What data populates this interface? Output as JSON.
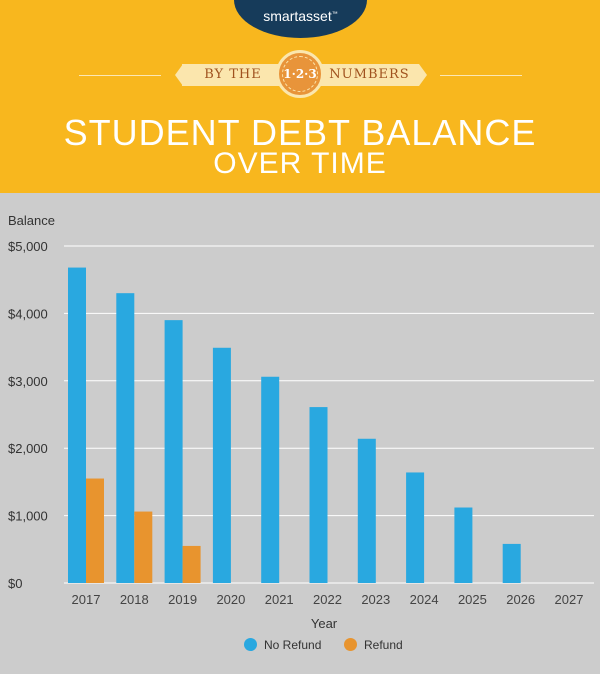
{
  "brand": {
    "logo_text": "smartasset",
    "logo_tm": "™"
  },
  "header": {
    "banner_left": "BY THE",
    "banner_badge": "1·2·3",
    "banner_right": "NUMBERS",
    "title_line1": "STUDENT DEBT BALANCE",
    "title_line2": "OVER TIME",
    "bg_color": "#f8b71e"
  },
  "chart_data": {
    "type": "bar",
    "title": "STUDENT DEBT BALANCE OVER TIME",
    "xlabel": "Year",
    "ylabel": "Balance",
    "categories": [
      "2017",
      "2018",
      "2019",
      "2020",
      "2021",
      "2022",
      "2023",
      "2024",
      "2025",
      "2026",
      "2027"
    ],
    "ylim": [
      0,
      5000
    ],
    "yticks": [
      0,
      1000,
      2000,
      3000,
      4000,
      5000
    ],
    "ytick_labels": [
      "$0",
      "$1,000",
      "$2,000",
      "$3,000",
      "$4,000",
      "$5,000"
    ],
    "grid": true,
    "legend_position": "bottom-center",
    "series": [
      {
        "name": "No Refund",
        "color": "#29a8e0",
        "values": [
          4680,
          4300,
          3900,
          3490,
          3060,
          2610,
          2140,
          1640,
          1120,
          580,
          0
        ]
      },
      {
        "name": "Refund",
        "color": "#e8942e",
        "values": [
          1550,
          1060,
          550,
          0,
          0,
          0,
          0,
          0,
          0,
          0,
          0
        ]
      }
    ]
  }
}
